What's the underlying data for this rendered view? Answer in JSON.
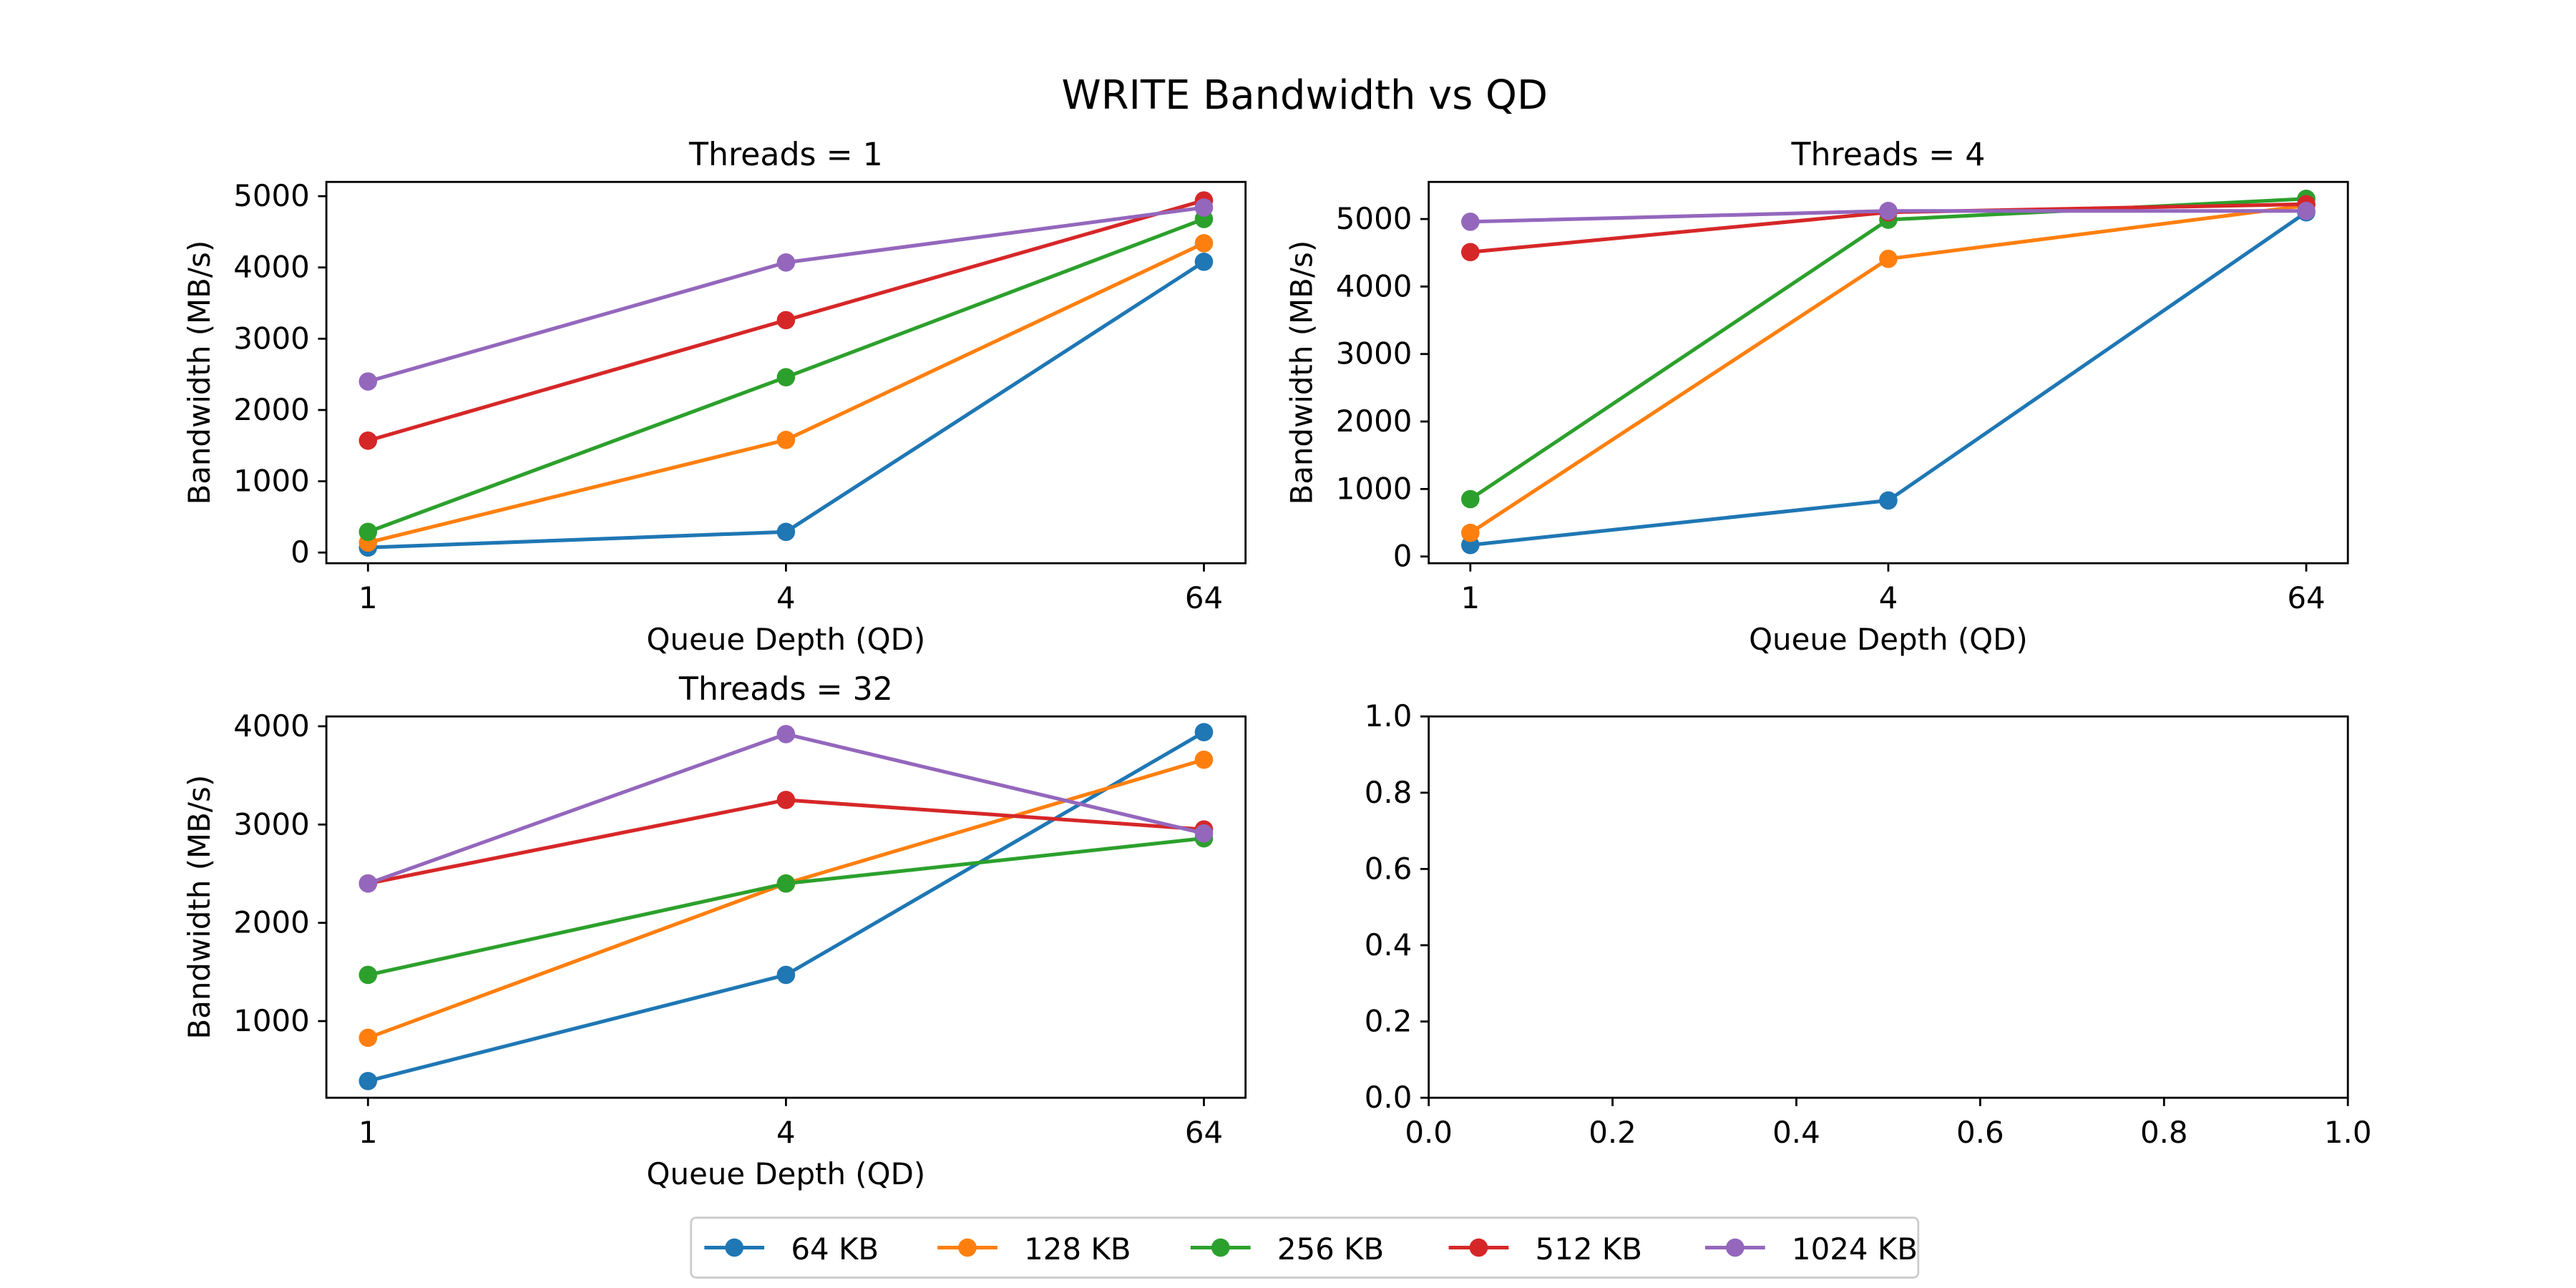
{
  "figure": {
    "title": "WRITE Bandwidth vs QD"
  },
  "chart_data": [
    {
      "type": "line",
      "title": "Threads = 1",
      "xlabel": "Queue Depth (QD)",
      "ylabel": "Bandwidth (MB/s)",
      "categories": [
        "1",
        "4",
        "64"
      ],
      "ylim": [
        -150,
        5200
      ],
      "yticks": [
        0,
        1000,
        2000,
        3000,
        4000,
        5000
      ],
      "yticklabels": [
        "0",
        "1000",
        "2000",
        "3000",
        "4000",
        "5000"
      ],
      "series": [
        {
          "name": "64 KB",
          "color": "#1f77b4",
          "values": [
            70,
            290,
            4080
          ]
        },
        {
          "name": "128 KB",
          "color": "#ff7f0e",
          "values": [
            140,
            1580,
            4340
          ]
        },
        {
          "name": "256 KB",
          "color": "#2ca02c",
          "values": [
            290,
            2460,
            4680
          ]
        },
        {
          "name": "512 KB",
          "color": "#d62728",
          "values": [
            1570,
            3260,
            4940
          ]
        },
        {
          "name": "1024 KB",
          "color": "#9467bd",
          "values": [
            2400,
            4070,
            4840
          ]
        }
      ]
    },
    {
      "type": "line",
      "title": "Threads = 4",
      "xlabel": "Queue Depth (QD)",
      "ylabel": "Bandwidth (MB/s)",
      "categories": [
        "1",
        "4",
        "64"
      ],
      "ylim": [
        -100,
        5550
      ],
      "yticks": [
        0,
        1000,
        2000,
        3000,
        4000,
        5000
      ],
      "yticklabels": [
        "0",
        "1000",
        "2000",
        "3000",
        "4000",
        "5000"
      ],
      "series": [
        {
          "name": "64 KB",
          "color": "#1f77b4",
          "values": [
            170,
            830,
            5100
          ]
        },
        {
          "name": "128 KB",
          "color": "#ff7f0e",
          "values": [
            350,
            4410,
            5200
          ]
        },
        {
          "name": "256 KB",
          "color": "#2ca02c",
          "values": [
            850,
            4990,
            5300
          ]
        },
        {
          "name": "512 KB",
          "color": "#d62728",
          "values": [
            4510,
            5100,
            5220
          ]
        },
        {
          "name": "1024 KB",
          "color": "#9467bd",
          "values": [
            4960,
            5120,
            5120
          ]
        }
      ]
    },
    {
      "type": "line",
      "title": "Threads = 32",
      "xlabel": "Queue Depth (QD)",
      "ylabel": "Bandwidth (MB/s)",
      "categories": [
        "1",
        "4",
        "64"
      ],
      "ylim": [
        220,
        4100
      ],
      "yticks": [
        1000,
        2000,
        3000,
        4000
      ],
      "yticklabels": [
        "1000",
        "2000",
        "3000",
        "4000"
      ],
      "series": [
        {
          "name": "64 KB",
          "color": "#1f77b4",
          "values": [
            390,
            1470,
            3940
          ]
        },
        {
          "name": "128 KB",
          "color": "#ff7f0e",
          "values": [
            830,
            2400,
            3660
          ]
        },
        {
          "name": "256 KB",
          "color": "#2ca02c",
          "values": [
            1470,
            2400,
            2860
          ]
        },
        {
          "name": "512 KB",
          "color": "#d62728",
          "values": [
            2400,
            3250,
            2950
          ]
        },
        {
          "name": "1024 KB",
          "color": "#9467bd",
          "values": [
            2400,
            3920,
            2910
          ]
        }
      ]
    },
    {
      "type": "line",
      "title": "",
      "xlabel": "",
      "ylabel": "",
      "empty": true,
      "xlim": [
        0,
        1
      ],
      "ylim": [
        0,
        1
      ],
      "xticks": [
        0,
        0.2,
        0.4,
        0.6,
        0.8,
        1
      ],
      "xticklabels": [
        "0.0",
        "0.2",
        "0.4",
        "0.6",
        "0.8",
        "1.0"
      ],
      "yticks": [
        0,
        0.2,
        0.4,
        0.6,
        0.8,
        1
      ],
      "yticklabels": [
        "0.0",
        "0.2",
        "0.4",
        "0.6",
        "0.8",
        "1.0"
      ],
      "series": []
    }
  ],
  "legend": {
    "placement": "bottom-center",
    "items": [
      {
        "label": "64 KB",
        "color": "#1f77b4"
      },
      {
        "label": "128 KB",
        "color": "#ff7f0e"
      },
      {
        "label": "256 KB",
        "color": "#2ca02c"
      },
      {
        "label": "512 KB",
        "color": "#d62728"
      },
      {
        "label": "1024 KB",
        "color": "#9467bd"
      }
    ]
  }
}
